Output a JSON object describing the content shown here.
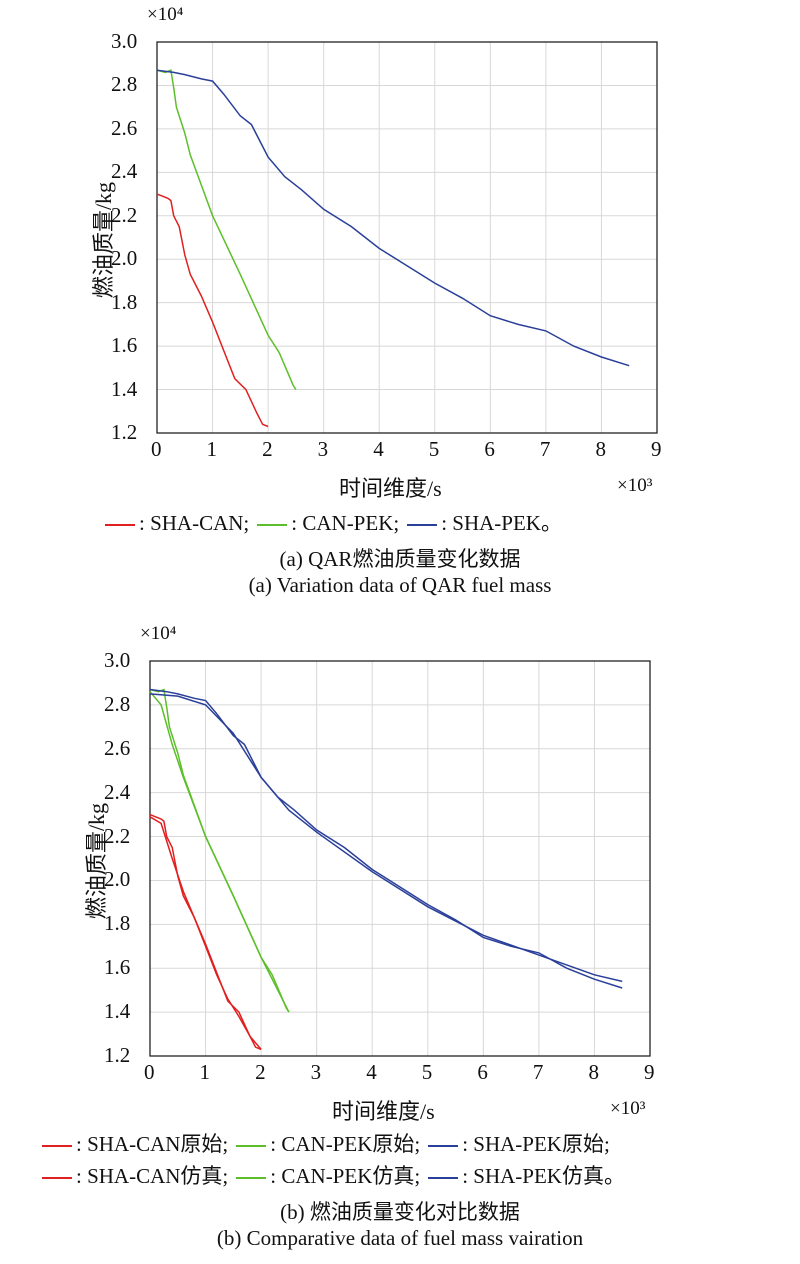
{
  "colors": {
    "SHA-CAN": "#e02020",
    "CAN-PEK": "#5cbf2a",
    "SHA-PEK": "#2a3f9a"
  },
  "chart_data": [
    {
      "type": "line",
      "title": "(a) QAR燃油质量变化数据",
      "subtitle": "(a) Variation data of QAR fuel mass",
      "xlabel": "时间维度/s",
      "ylabel": "燃油质量/kg",
      "x_multiplier": "×10³",
      "y_multiplier": "×10⁴",
      "xlim": [
        0,
        9
      ],
      "ylim": [
        1.2,
        3.0
      ],
      "grid": true,
      "xticks": [
        "0",
        "1",
        "2",
        "3",
        "4",
        "5",
        "6",
        "7",
        "8",
        "9"
      ],
      "yticks": [
        "1.2",
        "1.4",
        "1.6",
        "1.8",
        "2.0",
        "2.2",
        "2.4",
        "2.6",
        "2.8",
        "3.0"
      ],
      "legend": [
        ": SHA-CAN;",
        ": CAN-PEK;",
        ": SHA-PEK。"
      ],
      "series": [
        {
          "name": "SHA-CAN",
          "color": "SHA-CAN",
          "x": [
            0,
            0.1,
            0.2,
            0.25,
            0.3,
            0.4,
            0.5,
            0.6,
            0.8,
            1.0,
            1.2,
            1.4,
            1.6,
            1.8,
            1.9,
            2.0
          ],
          "y": [
            2.3,
            2.29,
            2.28,
            2.27,
            2.2,
            2.15,
            2.02,
            1.93,
            1.83,
            1.71,
            1.58,
            1.45,
            1.4,
            1.29,
            1.24,
            1.23
          ]
        },
        {
          "name": "CAN-PEK",
          "color": "CAN-PEK",
          "x": [
            0,
            0.15,
            0.25,
            0.3,
            0.35,
            0.5,
            0.6,
            0.7,
            1.0,
            1.5,
            2.0,
            2.2,
            2.35,
            2.45,
            2.5
          ],
          "y": [
            2.87,
            2.86,
            2.87,
            2.79,
            2.7,
            2.58,
            2.48,
            2.41,
            2.2,
            1.93,
            1.65,
            1.57,
            1.48,
            1.42,
            1.4
          ]
        },
        {
          "name": "SHA-PEK",
          "color": "SHA-PEK",
          "x": [
            0,
            0.3,
            0.5,
            0.8,
            1.0,
            1.2,
            1.5,
            1.7,
            2.0,
            2.3,
            2.6,
            3.0,
            3.5,
            4.0,
            4.5,
            5.0,
            5.5,
            6.0,
            6.5,
            7.0,
            7.5,
            8.0,
            8.5
          ],
          "y": [
            2.87,
            2.86,
            2.85,
            2.83,
            2.82,
            2.76,
            2.66,
            2.62,
            2.47,
            2.38,
            2.32,
            2.23,
            2.15,
            2.05,
            1.97,
            1.89,
            1.82,
            1.74,
            1.7,
            1.67,
            1.6,
            1.55,
            1.51
          ]
        }
      ]
    },
    {
      "type": "line",
      "title": "(b) 燃油质量变化对比数据",
      "subtitle": "(b) Comparative data of fuel mass vairation",
      "xlabel": "时间维度/s",
      "ylabel": "燃油质量/kg",
      "x_multiplier": "×10³",
      "y_multiplier": "×10⁴",
      "xlim": [
        0,
        9
      ],
      "ylim": [
        1.2,
        3.0
      ],
      "grid": true,
      "xticks": [
        "0",
        "1",
        "2",
        "3",
        "4",
        "5",
        "6",
        "7",
        "8",
        "9"
      ],
      "yticks": [
        "1.2",
        "1.4",
        "1.6",
        "1.8",
        "2.0",
        "2.2",
        "2.4",
        "2.6",
        "2.8",
        "3.0"
      ],
      "legend": [
        ": SHA-CAN原始;",
        ": CAN-PEK原始;",
        ": SHA-PEK原始;",
        ": SHA-CAN仿真;",
        ": CAN-PEK仿真;",
        ": SHA-PEK仿真。"
      ],
      "series": [
        {
          "name": "SHA-CAN原始",
          "color": "SHA-CAN",
          "x": [
            0,
            0.1,
            0.2,
            0.25,
            0.3,
            0.4,
            0.5,
            0.6,
            0.8,
            1.0,
            1.2,
            1.4,
            1.6,
            1.8,
            1.9,
            2.0
          ],
          "y": [
            2.3,
            2.29,
            2.28,
            2.27,
            2.2,
            2.15,
            2.02,
            1.93,
            1.83,
            1.71,
            1.58,
            1.45,
            1.4,
            1.29,
            1.24,
            1.23
          ]
        },
        {
          "name": "CAN-PEK原始",
          "color": "CAN-PEK",
          "x": [
            0,
            0.15,
            0.25,
            0.3,
            0.35,
            0.5,
            0.6,
            0.7,
            1.0,
            1.5,
            2.0,
            2.2,
            2.35,
            2.45,
            2.5
          ],
          "y": [
            2.87,
            2.86,
            2.87,
            2.79,
            2.7,
            2.58,
            2.48,
            2.41,
            2.2,
            1.93,
            1.65,
            1.57,
            1.48,
            1.42,
            1.4
          ]
        },
        {
          "name": "SHA-PEK原始",
          "color": "SHA-PEK",
          "x": [
            0,
            0.3,
            0.5,
            0.8,
            1.0,
            1.2,
            1.5,
            1.7,
            2.0,
            2.3,
            2.6,
            3.0,
            3.5,
            4.0,
            4.5,
            5.0,
            5.5,
            6.0,
            6.5,
            7.0,
            7.5,
            8.0,
            8.5
          ],
          "y": [
            2.87,
            2.86,
            2.85,
            2.83,
            2.82,
            2.76,
            2.66,
            2.62,
            2.47,
            2.38,
            2.32,
            2.23,
            2.15,
            2.05,
            1.97,
            1.89,
            1.82,
            1.74,
            1.7,
            1.67,
            1.6,
            1.55,
            1.51
          ]
        },
        {
          "name": "SHA-CAN仿真",
          "color": "SHA-CAN",
          "x": [
            0,
            0.2,
            0.4,
            0.6,
            0.8,
            1.0,
            1.2,
            1.4,
            1.6,
            1.8,
            2.0
          ],
          "y": [
            2.29,
            2.26,
            2.1,
            1.95,
            1.83,
            1.7,
            1.57,
            1.46,
            1.38,
            1.29,
            1.23
          ]
        },
        {
          "name": "CAN-PEK仿真",
          "color": "CAN-PEK",
          "x": [
            0,
            0.2,
            0.4,
            0.6,
            1.0,
            1.5,
            2.0,
            2.3,
            2.5
          ],
          "y": [
            2.86,
            2.8,
            2.62,
            2.47,
            2.2,
            1.93,
            1.65,
            1.5,
            1.4
          ]
        },
        {
          "name": "SHA-PEK仿真",
          "color": "SHA-PEK",
          "x": [
            0,
            0.5,
            1,
            1.5,
            2,
            2.5,
            3,
            4,
            5,
            6,
            7,
            8,
            8.5
          ],
          "y": [
            2.85,
            2.84,
            2.8,
            2.67,
            2.47,
            2.32,
            2.22,
            2.04,
            1.88,
            1.75,
            1.66,
            1.57,
            1.54
          ]
        }
      ]
    }
  ]
}
